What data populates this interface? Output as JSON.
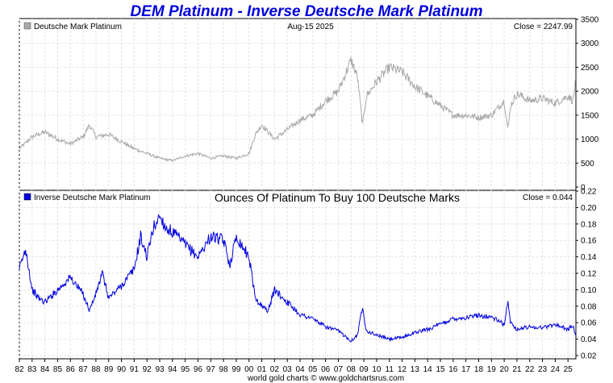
{
  "chart_data": [
    {
      "type": "line",
      "title": "DEM Platinum - Inverse Deutsche Mark Platinum",
      "legend": "Deutsche Mark Platinum",
      "date_label": "Aug-15  2025",
      "close_label": "Close = 2247.99",
      "color": "#a8a8a8",
      "ylim": [
        0,
        3500
      ],
      "yticks": [
        "0",
        "500",
        "1000",
        "1500",
        "2000",
        "2500",
        "3000",
        "3500"
      ],
      "x": [
        1982,
        1983,
        1984,
        1985,
        1986,
        1987,
        1987.5,
        1988,
        1989,
        1990,
        1991,
        1992,
        1993,
        1994,
        1995,
        1996,
        1997,
        1998,
        1999,
        2000,
        2000.5,
        2001,
        2002,
        2003,
        2004,
        2005,
        2006,
        2007,
        2008.0,
        2008.5,
        2008.9,
        2009.2,
        2010,
        2011,
        2012,
        2013,
        2014,
        2015,
        2016,
        2017,
        2018,
        2019,
        2020.0,
        2020.3,
        2020.5,
        2021,
        2022,
        2023,
        2024,
        2025.0,
        2025.4,
        2025.62
      ],
      "values": [
        800,
        1050,
        1150,
        1000,
        900,
        1050,
        1300,
        1050,
        1100,
        950,
        800,
        700,
        600,
        550,
        650,
        700,
        600,
        650,
        600,
        700,
        1100,
        1300,
        1000,
        1200,
        1400,
        1500,
        1800,
        2000,
        2650,
        2300,
        1300,
        1900,
        2200,
        2500,
        2400,
        2100,
        1900,
        1700,
        1500,
        1500,
        1450,
        1500,
        1800,
        1200,
        1700,
        1950,
        1800,
        1850,
        1750,
        1900,
        1800,
        2248
      ]
    },
    {
      "type": "line",
      "title": "Ounces Of Platinum To Buy 100 Deutsche Marks",
      "legend": "Inverse Deutsche Mark Platinum",
      "close_label": "Close = 0.044",
      "color": "#0000e0",
      "ylim": [
        0.02,
        0.22
      ],
      "yticks": [
        "0.02",
        "0.04",
        "0.06",
        "0.08",
        "0.10",
        "0.12",
        "0.14",
        "0.16",
        "0.18",
        "0.20",
        "0.22"
      ],
      "x": [
        1982,
        1982.5,
        1983,
        1983.5,
        1984,
        1985,
        1986,
        1987,
        1987.5,
        1988,
        1988.5,
        1989,
        1990,
        1991,
        1991.5,
        1992,
        1992.5,
        1993,
        1993.5,
        1994,
        1995,
        1996,
        1997,
        1998,
        1998.5,
        1999,
        2000,
        2000.5,
        2001,
        2001.5,
        2002,
        2003,
        2004,
        2005,
        2006,
        2007,
        2008.0,
        2008.5,
        2008.9,
        2009.2,
        2010,
        2011,
        2012,
        2013,
        2014,
        2015,
        2016,
        2017,
        2018,
        2019,
        2020.0,
        2020.3,
        2020.5,
        2021,
        2022,
        2023,
        2024,
        2025.0,
        2025.4,
        2025.62
      ],
      "values": [
        0.125,
        0.15,
        0.1,
        0.09,
        0.085,
        0.1,
        0.115,
        0.095,
        0.075,
        0.095,
        0.12,
        0.09,
        0.105,
        0.125,
        0.165,
        0.14,
        0.175,
        0.19,
        0.175,
        0.17,
        0.155,
        0.14,
        0.165,
        0.16,
        0.13,
        0.165,
        0.14,
        0.09,
        0.08,
        0.075,
        0.1,
        0.085,
        0.07,
        0.065,
        0.055,
        0.05,
        0.038,
        0.045,
        0.08,
        0.05,
        0.045,
        0.04,
        0.042,
        0.048,
        0.052,
        0.058,
        0.065,
        0.066,
        0.069,
        0.067,
        0.058,
        0.085,
        0.06,
        0.052,
        0.055,
        0.054,
        0.058,
        0.052,
        0.056,
        0.044
      ]
    }
  ],
  "x_axis": {
    "ticks": [
      "82",
      "83",
      "84",
      "85",
      "86",
      "87",
      "88",
      "89",
      "90",
      "91",
      "92",
      "93",
      "94",
      "95",
      "96",
      "97",
      "98",
      "99",
      "00",
      "01",
      "02",
      "03",
      "04",
      "05",
      "06",
      "07",
      "08",
      "09",
      "10",
      "11",
      "12",
      "13",
      "14",
      "15",
      "16",
      "17",
      "18",
      "19",
      "20",
      "21",
      "22",
      "23",
      "24",
      "25"
    ],
    "start": 1982,
    "end": 2025.62
  },
  "footer": "world gold charts © www.goldchartsrus.com",
  "colors": {
    "title": "#0000dd",
    "grid": "#e2e2e2",
    "frame": "#000000"
  }
}
